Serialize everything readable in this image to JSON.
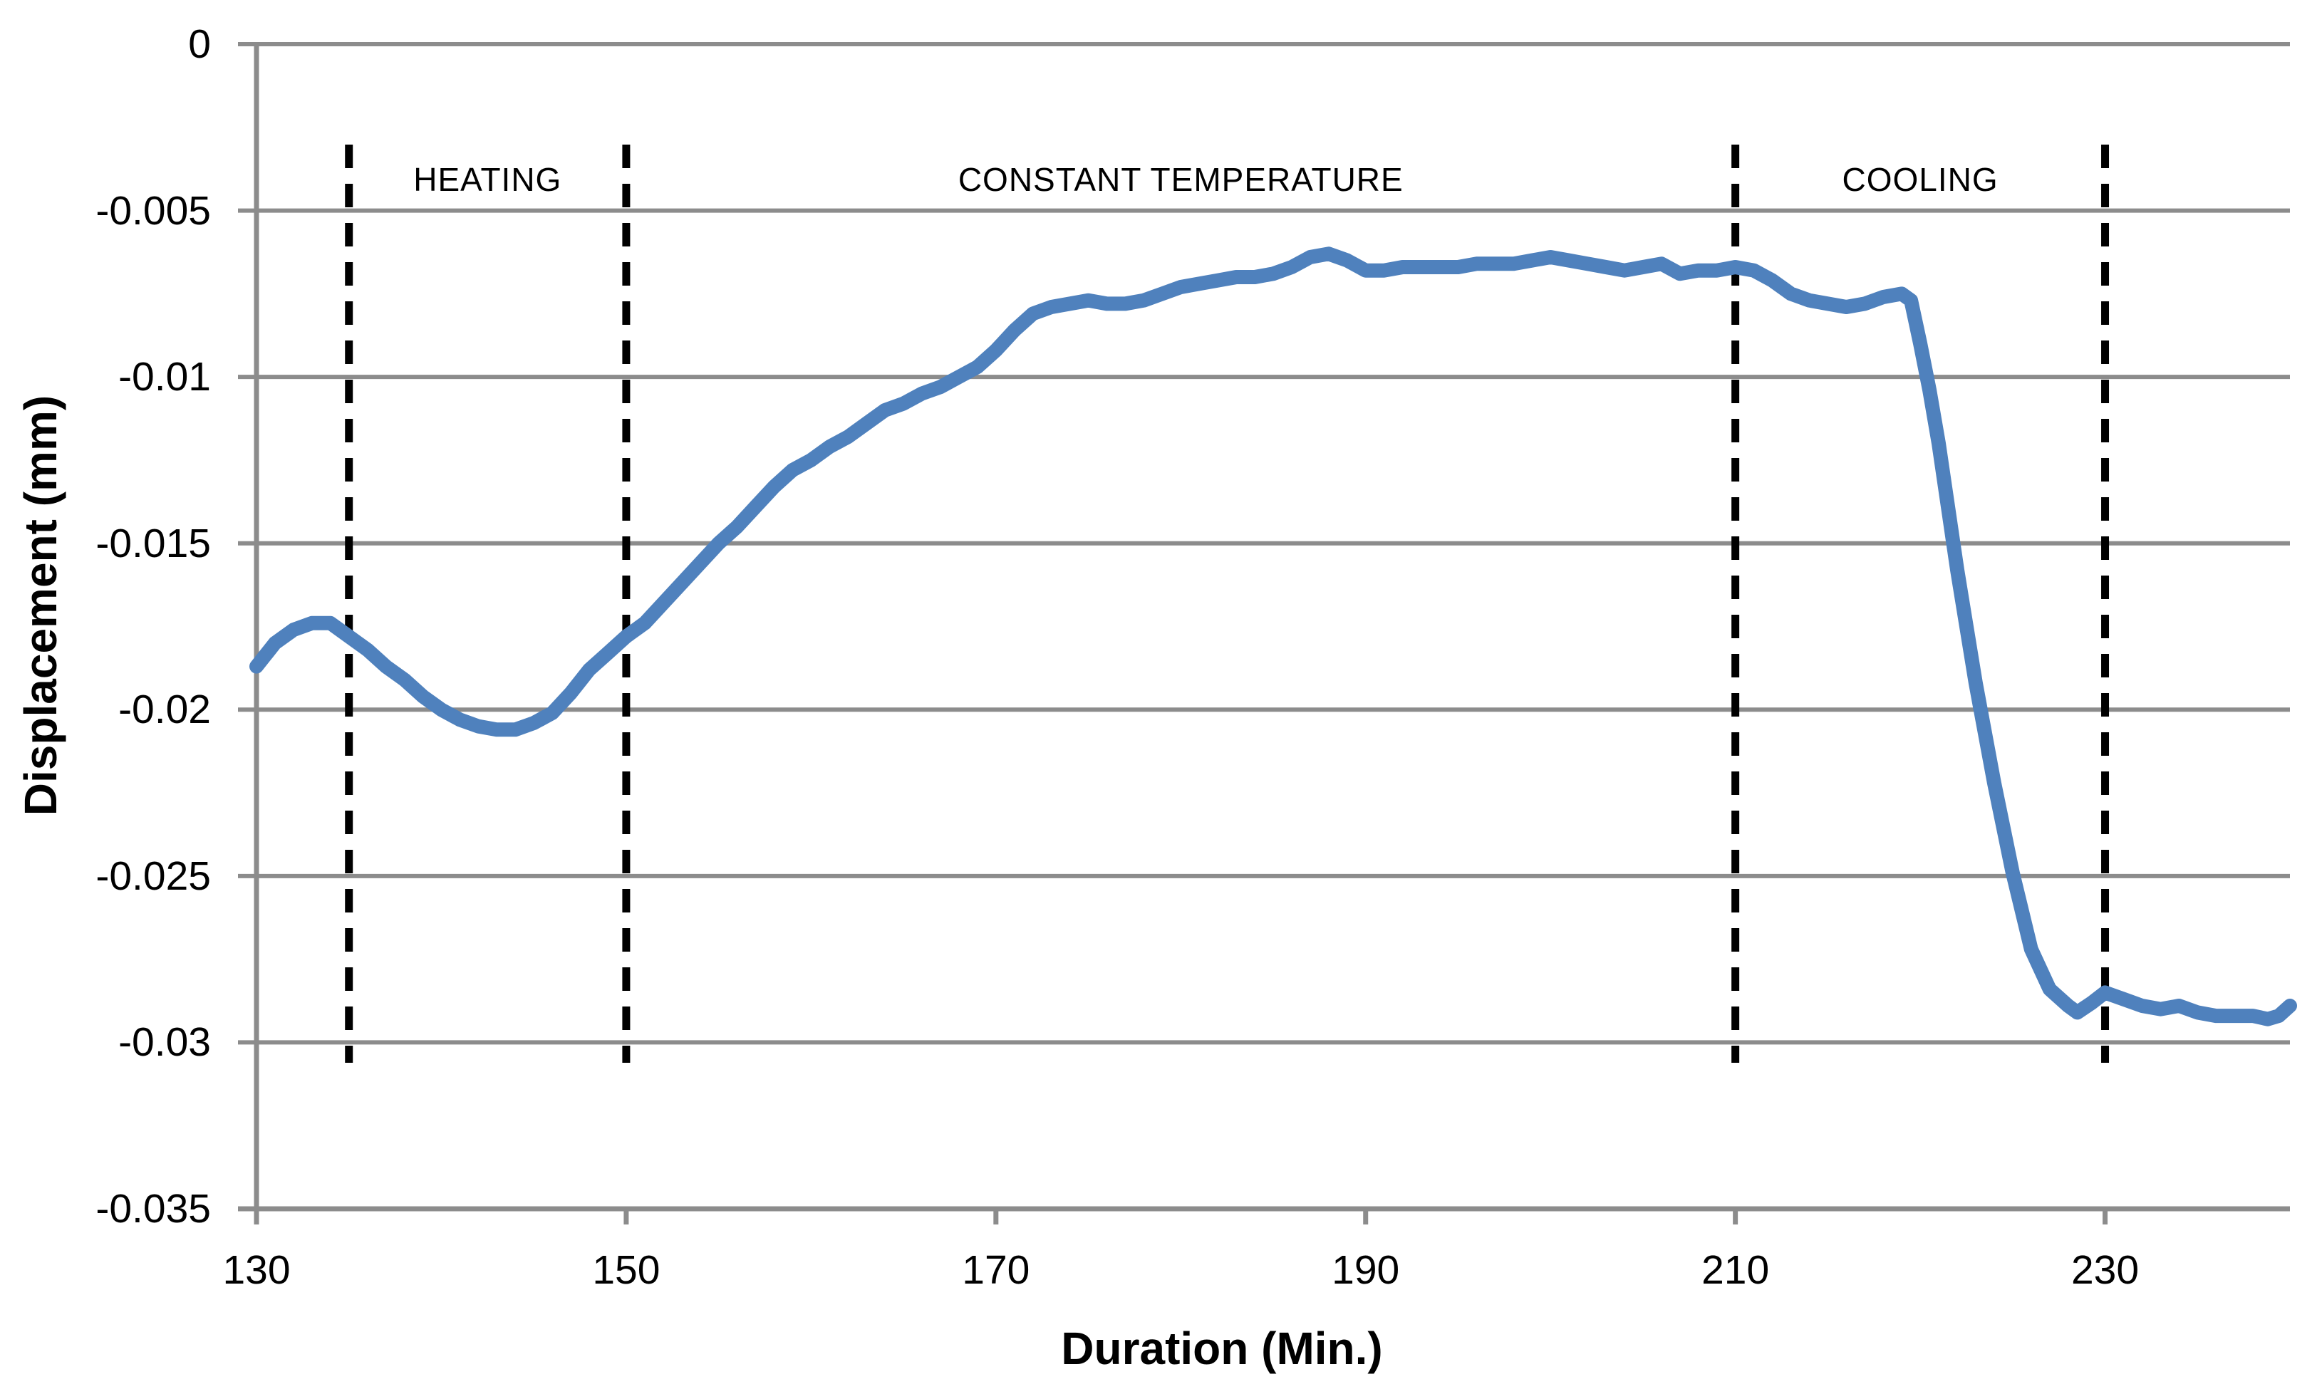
{
  "page": {
    "background": "#FFFFFF"
  },
  "chart_data": {
    "type": "line",
    "title": "",
    "xlabel": "Duration (Min.)",
    "ylabel": "Displacement (mm)",
    "xlim": [
      130,
      240
    ],
    "ylim": [
      -0.035,
      0
    ],
    "x_ticks": [
      130,
      150,
      170,
      190,
      210,
      230
    ],
    "x_tick_labels": [
      "130",
      "150",
      "170",
      "190",
      "210",
      "230"
    ],
    "y_ticks": [
      0,
      -0.005,
      -0.01,
      -0.015,
      -0.02,
      -0.025,
      -0.03,
      -0.035
    ],
    "y_tick_labels": [
      "0",
      "-0.005",
      "-0.01",
      "-0.015",
      "-0.02",
      "-0.025",
      "-0.03",
      "-0.035"
    ],
    "grid": true,
    "legend": false,
    "colors": {
      "line": "#4F81BD",
      "grid": "#8C8C8C",
      "axis": "#8C8C8C",
      "dashed_line": "#000000",
      "text": "#000000"
    },
    "annotations": {
      "dashed_boundaries_x": [
        135,
        150,
        210,
        230
      ],
      "regions": [
        {
          "label": "HEATING",
          "from": 135,
          "to": 150
        },
        {
          "label": "CONSTANT TEMPERATURE",
          "from": 150,
          "to": 210
        },
        {
          "label": "COOLING",
          "from": 210,
          "to": 230
        }
      ]
    },
    "series": [
      {
        "name": "Displacement",
        "color": "#4F81BD",
        "points": [
          [
            130,
            -0.0187
          ],
          [
            131,
            -0.018
          ],
          [
            132,
            -0.0176
          ],
          [
            133,
            -0.0174
          ],
          [
            134,
            -0.0174
          ],
          [
            135,
            -0.0178
          ],
          [
            136,
            -0.0182
          ],
          [
            137,
            -0.0187
          ],
          [
            138,
            -0.0191
          ],
          [
            139,
            -0.0196
          ],
          [
            140,
            -0.02
          ],
          [
            141,
            -0.0203
          ],
          [
            142,
            -0.0205
          ],
          [
            143,
            -0.0206
          ],
          [
            144,
            -0.0206
          ],
          [
            145,
            -0.0204
          ],
          [
            146,
            -0.0201
          ],
          [
            147,
            -0.0195
          ],
          [
            148,
            -0.0188
          ],
          [
            149,
            -0.0183
          ],
          [
            150,
            -0.0178
          ],
          [
            151,
            -0.0174
          ],
          [
            152,
            -0.0168
          ],
          [
            153,
            -0.0162
          ],
          [
            154,
            -0.0156
          ],
          [
            155,
            -0.015
          ],
          [
            156,
            -0.0145
          ],
          [
            157,
            -0.0139
          ],
          [
            158,
            -0.0133
          ],
          [
            159,
            -0.0128
          ],
          [
            160,
            -0.0125
          ],
          [
            161,
            -0.0121
          ],
          [
            162,
            -0.0118
          ],
          [
            163,
            -0.0114
          ],
          [
            164,
            -0.011
          ],
          [
            165,
            -0.0108
          ],
          [
            166,
            -0.0105
          ],
          [
            167,
            -0.0103
          ],
          [
            168,
            -0.01
          ],
          [
            169,
            -0.0097
          ],
          [
            170,
            -0.0092
          ],
          [
            171,
            -0.0086
          ],
          [
            172,
            -0.0081
          ],
          [
            173,
            -0.0079
          ],
          [
            174,
            -0.0078
          ],
          [
            175,
            -0.0077
          ],
          [
            176,
            -0.0078
          ],
          [
            177,
            -0.0078
          ],
          [
            178,
            -0.0077
          ],
          [
            179,
            -0.0075
          ],
          [
            180,
            -0.0073
          ],
          [
            181,
            -0.0072
          ],
          [
            182,
            -0.0071
          ],
          [
            183,
            -0.007
          ],
          [
            184,
            -0.007
          ],
          [
            185,
            -0.0069
          ],
          [
            186,
            -0.0067
          ],
          [
            187,
            -0.0064
          ],
          [
            188,
            -0.0063
          ],
          [
            189,
            -0.0065
          ],
          [
            190,
            -0.0068
          ],
          [
            191,
            -0.0068
          ],
          [
            192,
            -0.0067
          ],
          [
            193,
            -0.0067
          ],
          [
            194,
            -0.0067
          ],
          [
            195,
            -0.0067
          ],
          [
            196,
            -0.0066
          ],
          [
            197,
            -0.0066
          ],
          [
            198,
            -0.0066
          ],
          [
            199,
            -0.0065
          ],
          [
            200,
            -0.0064
          ],
          [
            201,
            -0.0065
          ],
          [
            202,
            -0.0066
          ],
          [
            203,
            -0.0067
          ],
          [
            204,
            -0.0068
          ],
          [
            205,
            -0.0067
          ],
          [
            206,
            -0.0066
          ],
          [
            207,
            -0.0069
          ],
          [
            208,
            -0.0068
          ],
          [
            209,
            -0.0068
          ],
          [
            210,
            -0.0067
          ],
          [
            211,
            -0.0068
          ],
          [
            212,
            -0.0071
          ],
          [
            213,
            -0.0075
          ],
          [
            214,
            -0.0077
          ],
          [
            215,
            -0.0078
          ],
          [
            216,
            -0.0079
          ],
          [
            217,
            -0.0078
          ],
          [
            218,
            -0.0076
          ],
          [
            219,
            -0.0075
          ],
          [
            219.5,
            -0.0077
          ],
          [
            220,
            -0.009
          ],
          [
            220.5,
            -0.0104
          ],
          [
            221,
            -0.012
          ],
          [
            221.5,
            -0.0139
          ],
          [
            222,
            -0.0158
          ],
          [
            223,
            -0.0192
          ],
          [
            224,
            -0.0222
          ],
          [
            225,
            -0.0249
          ],
          [
            226,
            -0.0272
          ],
          [
            227,
            -0.0284
          ],
          [
            228,
            -0.0289
          ],
          [
            228.5,
            -0.0291
          ],
          [
            229.3,
            -0.0288
          ],
          [
            230,
            -0.0285
          ],
          [
            231,
            -0.0287
          ],
          [
            232,
            -0.0289
          ],
          [
            233,
            -0.029
          ],
          [
            234,
            -0.0289
          ],
          [
            235,
            -0.0291
          ],
          [
            236,
            -0.0292
          ],
          [
            237,
            -0.0292
          ],
          [
            238,
            -0.0292
          ],
          [
            238.8,
            -0.0293
          ],
          [
            239.4,
            -0.0292
          ],
          [
            240,
            -0.0289
          ]
        ]
      }
    ]
  }
}
